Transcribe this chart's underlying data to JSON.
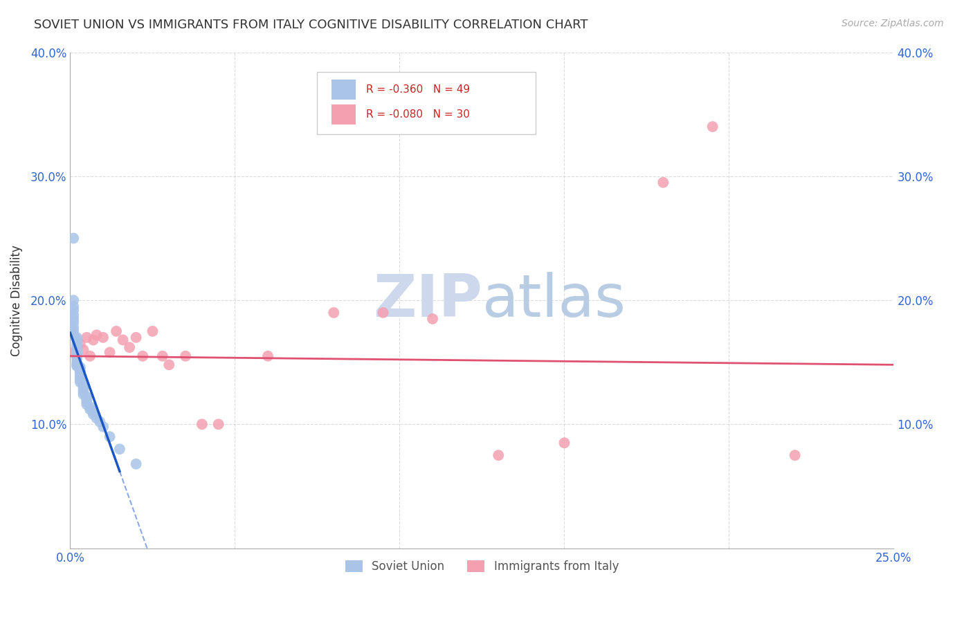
{
  "title": "SOVIET UNION VS IMMIGRANTS FROM ITALY COGNITIVE DISABILITY CORRELATION CHART",
  "source": "Source: ZipAtlas.com",
  "ylabel": "Cognitive Disability",
  "xlim": [
    0.0,
    0.25
  ],
  "ylim": [
    0.0,
    0.4
  ],
  "xticks": [
    0.0,
    0.05,
    0.1,
    0.15,
    0.2,
    0.25
  ],
  "yticks": [
    0.0,
    0.1,
    0.2,
    0.3,
    0.4
  ],
  "xtick_labels": [
    "0.0%",
    "",
    "",
    "",
    "",
    "25.0%"
  ],
  "ytick_labels": [
    "",
    "10.0%",
    "20.0%",
    "30.0%",
    "40.0%"
  ],
  "grid_color": "#cccccc",
  "background_color": "#ffffff",
  "soviet_color": "#aac4e8",
  "italy_color": "#f4a0b0",
  "soviet_line_color": "#1a56c4",
  "italy_line_color": "#e05070",
  "soviet_R": -0.36,
  "soviet_N": 49,
  "italy_R": -0.08,
  "italy_N": 30,
  "legend_label_soviet": "Soviet Union",
  "legend_label_italy": "Immigrants from Italy",
  "soviet_scatter_x": [
    0.001,
    0.001,
    0.001,
    0.001,
    0.001,
    0.001,
    0.001,
    0.001,
    0.001,
    0.001,
    0.002,
    0.002,
    0.002,
    0.002,
    0.002,
    0.002,
    0.002,
    0.002,
    0.002,
    0.002,
    0.002,
    0.002,
    0.003,
    0.003,
    0.003,
    0.003,
    0.003,
    0.003,
    0.003,
    0.003,
    0.004,
    0.004,
    0.004,
    0.004,
    0.004,
    0.005,
    0.005,
    0.005,
    0.005,
    0.006,
    0.006,
    0.007,
    0.007,
    0.008,
    0.009,
    0.01,
    0.012,
    0.015,
    0.02
  ],
  "soviet_scatter_y": [
    0.25,
    0.2,
    0.195,
    0.192,
    0.188,
    0.185,
    0.182,
    0.178,
    0.175,
    0.172,
    0.17,
    0.168,
    0.165,
    0.163,
    0.16,
    0.158,
    0.157,
    0.155,
    0.153,
    0.15,
    0.148,
    0.147,
    0.146,
    0.145,
    0.143,
    0.142,
    0.14,
    0.138,
    0.136,
    0.134,
    0.132,
    0.13,
    0.128,
    0.126,
    0.124,
    0.122,
    0.12,
    0.118,
    0.116,
    0.114,
    0.112,
    0.11,
    0.108,
    0.105,
    0.102,
    0.098,
    0.09,
    0.08,
    0.068
  ],
  "italy_scatter_x": [
    0.001,
    0.002,
    0.003,
    0.004,
    0.005,
    0.006,
    0.007,
    0.008,
    0.01,
    0.012,
    0.014,
    0.016,
    0.018,
    0.02,
    0.022,
    0.025,
    0.028,
    0.03,
    0.035,
    0.04,
    0.045,
    0.06,
    0.08,
    0.095,
    0.11,
    0.13,
    0.15,
    0.18,
    0.195,
    0.22
  ],
  "italy_scatter_y": [
    0.158,
    0.162,
    0.165,
    0.16,
    0.17,
    0.155,
    0.168,
    0.172,
    0.17,
    0.158,
    0.175,
    0.168,
    0.162,
    0.17,
    0.155,
    0.175,
    0.155,
    0.148,
    0.155,
    0.1,
    0.1,
    0.155,
    0.19,
    0.19,
    0.185,
    0.075,
    0.085,
    0.295,
    0.34,
    0.075
  ],
  "watermark_zip_color": "#cdd8ec",
  "watermark_atlas_color": "#b8cce4",
  "watermark_fontsize": 62
}
